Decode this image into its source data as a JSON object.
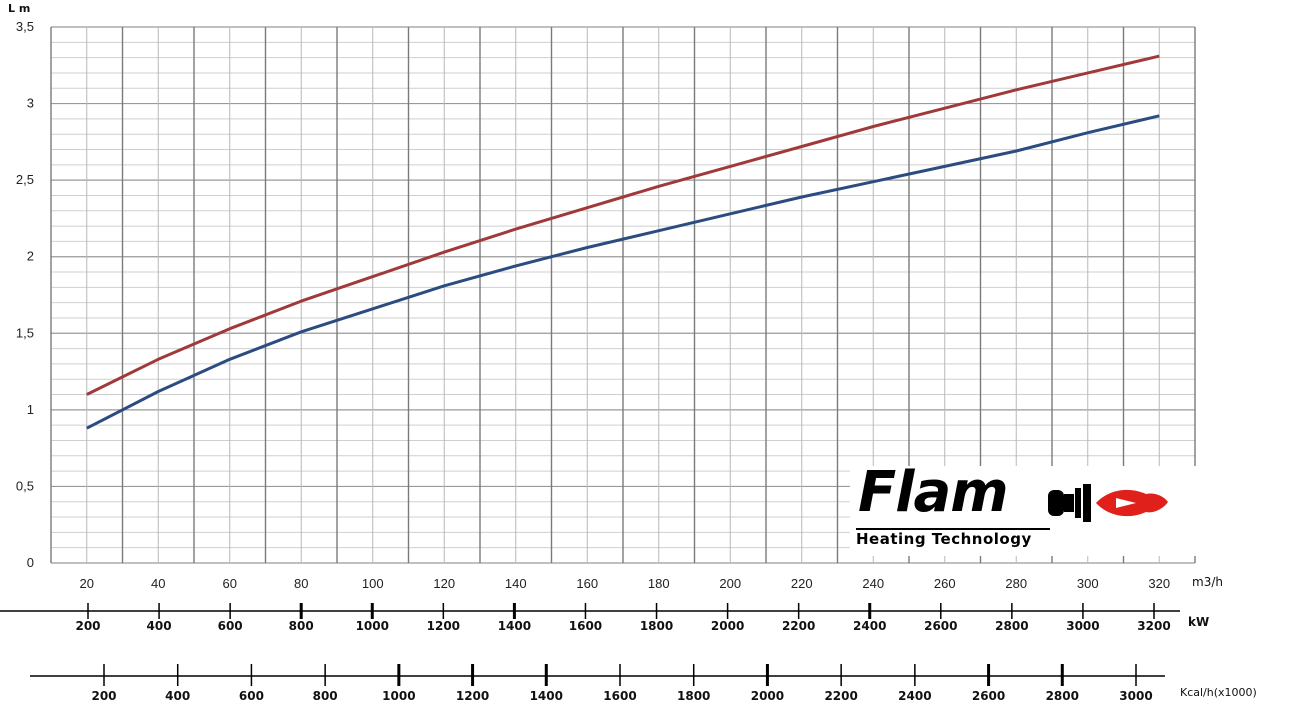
{
  "chart_data": {
    "type": "line",
    "ylabel": "L m",
    "ylim": [
      0,
      3.5
    ],
    "y_ticks": [
      "0",
      "0,5",
      "1",
      "1,5",
      "2",
      "2,5",
      "3",
      "3,5"
    ],
    "xlim": [
      10,
      330
    ],
    "x_ticks": [
      "20",
      "40",
      "60",
      "80",
      "100",
      "120",
      "140",
      "160",
      "180",
      "200",
      "220",
      "240",
      "260",
      "280",
      "300",
      "320"
    ],
    "xlabel": "m3/h",
    "grid": true,
    "series": [
      {
        "color": "#a03a3a",
        "x": [
          20,
          40,
          60,
          80,
          100,
          120,
          140,
          160,
          180,
          200,
          220,
          240,
          260,
          280,
          300,
          320
        ],
        "y": [
          1.1,
          1.33,
          1.53,
          1.71,
          1.87,
          2.03,
          2.18,
          2.32,
          2.46,
          2.59,
          2.72,
          2.85,
          2.97,
          3.09,
          3.2,
          3.31
        ]
      },
      {
        "color": "#2b4c80",
        "x": [
          20,
          40,
          60,
          80,
          100,
          120,
          140,
          160,
          180,
          200,
          220,
          240,
          260,
          280,
          300,
          320
        ],
        "y": [
          0.88,
          1.12,
          1.33,
          1.51,
          1.66,
          1.81,
          1.94,
          2.06,
          2.17,
          2.28,
          2.39,
          2.49,
          2.59,
          2.69,
          2.81,
          2.92
        ]
      }
    ],
    "kw_axis": {
      "unit": "kW",
      "labels": [
        "200",
        "400",
        "600",
        "800",
        "1000",
        "1200",
        "1400",
        "1600",
        "1800",
        "2000",
        "2200",
        "2400",
        "2600",
        "2800",
        "3000",
        "3200"
      ],
      "values": [
        200,
        400,
        600,
        800,
        1000,
        1200,
        1400,
        1600,
        1800,
        2000,
        2200,
        2400,
        2600,
        2800,
        3000,
        3200
      ]
    },
    "kcal_axis": {
      "unit": "Kcal/h(x1000)",
      "labels": [
        "200",
        "400",
        "600",
        "800",
        "1000",
        "1200",
        "1400",
        "1600",
        "1800",
        "2000",
        "2200",
        "2400",
        "2600",
        "2800",
        "3000"
      ],
      "values": [
        200,
        400,
        600,
        800,
        1000,
        1200,
        1400,
        1600,
        1800,
        2000,
        2200,
        2400,
        2600,
        2800,
        3000
      ]
    }
  },
  "logo": {
    "brand": "Flam",
    "tagline": "Heating Technology",
    "icon": "flame-burner-icon",
    "flame_color": "#e0201a"
  }
}
